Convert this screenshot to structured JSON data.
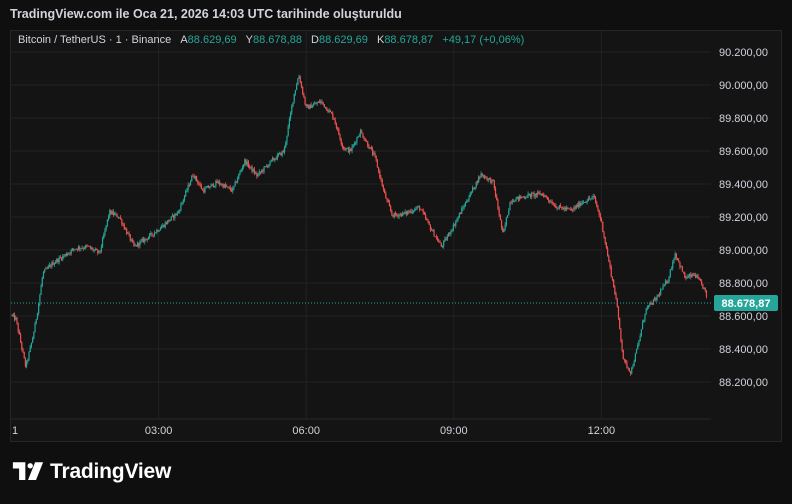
{
  "header": {
    "title": "TradingView.com ile Oca 21, 2026 14:03 UTC tarihinde oluşturuldu"
  },
  "legend": {
    "symbol": "Bitcoin / TetherUS · 1 · Binance",
    "open_label": "A",
    "open": "88.629,69",
    "high_label": "Y",
    "high": "88.678,88",
    "low_label": "D",
    "low": "88.629,69",
    "close_label": "K",
    "close": "88.678,87",
    "change": "+49,17 (+0,06%)"
  },
  "brand": {
    "name": "TradingView"
  },
  "colors": {
    "up": "#26a69a",
    "down": "#ef5350",
    "background": "#141414",
    "grid": "#222222",
    "text": "#d1d4dc",
    "price_tag": "#26a69a"
  },
  "chart_data": {
    "type": "candlestick",
    "timeframe": "1",
    "x_ticks": [
      {
        "label": "1",
        "hour": 0
      },
      {
        "label": "03:00",
        "hour": 3
      },
      {
        "label": "06:00",
        "hour": 6
      },
      {
        "label": "09:00",
        "hour": 9
      },
      {
        "label": "12:00",
        "hour": 12
      }
    ],
    "y_ticks": [
      "90.200,00",
      "90.000,00",
      "89.800,00",
      "89.600,00",
      "89.400,00",
      "89.200,00",
      "89.000,00",
      "88.800,00",
      "88.600,00",
      "88.400,00",
      "88.200,00"
    ],
    "y_tick_values": [
      90200,
      90000,
      89800,
      89600,
      89400,
      89200,
      89000,
      88800,
      88600,
      88400,
      88200
    ],
    "ylim": [
      88050,
      90260
    ],
    "last_price": 88678.87,
    "last_price_label": "88.678,87",
    "price_path": [
      [
        -0.05,
        88620
      ],
      [
        0.1,
        88580
      ],
      [
        0.3,
        88290
      ],
      [
        0.45,
        88480
      ],
      [
        0.55,
        88650
      ],
      [
        0.65,
        88860
      ],
      [
        0.85,
        88920
      ],
      [
        1.05,
        88960
      ],
      [
        1.3,
        89010
      ],
      [
        1.55,
        89020
      ],
      [
        1.8,
        88980
      ],
      [
        2.0,
        89230
      ],
      [
        2.2,
        89200
      ],
      [
        2.5,
        89020
      ],
      [
        2.8,
        89080
      ],
      [
        3.1,
        89150
      ],
      [
        3.4,
        89230
      ],
      [
        3.7,
        89460
      ],
      [
        3.9,
        89360
      ],
      [
        4.2,
        89410
      ],
      [
        4.5,
        89360
      ],
      [
        4.75,
        89540
      ],
      [
        5.0,
        89450
      ],
      [
        5.3,
        89540
      ],
      [
        5.55,
        89600
      ],
      [
        5.75,
        89940
      ],
      [
        5.85,
        90060
      ],
      [
        6.0,
        89860
      ],
      [
        6.3,
        89900
      ],
      [
        6.55,
        89810
      ],
      [
        6.75,
        89620
      ],
      [
        6.9,
        89600
      ],
      [
        7.1,
        89720
      ],
      [
        7.4,
        89560
      ],
      [
        7.6,
        89330
      ],
      [
        7.75,
        89210
      ],
      [
        8.0,
        89220
      ],
      [
        8.3,
        89260
      ],
      [
        8.55,
        89120
      ],
      [
        8.75,
        89020
      ],
      [
        9.0,
        89150
      ],
      [
        9.3,
        89320
      ],
      [
        9.55,
        89460
      ],
      [
        9.8,
        89410
      ],
      [
        10.0,
        89090
      ],
      [
        10.15,
        89300
      ],
      [
        10.5,
        89330
      ],
      [
        10.8,
        89340
      ],
      [
        11.1,
        89260
      ],
      [
        11.4,
        89240
      ],
      [
        11.6,
        89290
      ],
      [
        11.85,
        89320
      ],
      [
        12.0,
        89170
      ],
      [
        12.15,
        88930
      ],
      [
        12.3,
        88700
      ],
      [
        12.45,
        88330
      ],
      [
        12.6,
        88260
      ],
      [
        12.75,
        88430
      ],
      [
        12.9,
        88640
      ],
      [
        13.1,
        88700
      ],
      [
        13.35,
        88820
      ],
      [
        13.5,
        88980
      ],
      [
        13.7,
        88830
      ],
      [
        13.9,
        88850
      ],
      [
        14.1,
        88760
      ],
      [
        14.2,
        88630
      ],
      [
        14.35,
        88850
      ],
      [
        14.45,
        88679
      ]
    ]
  }
}
